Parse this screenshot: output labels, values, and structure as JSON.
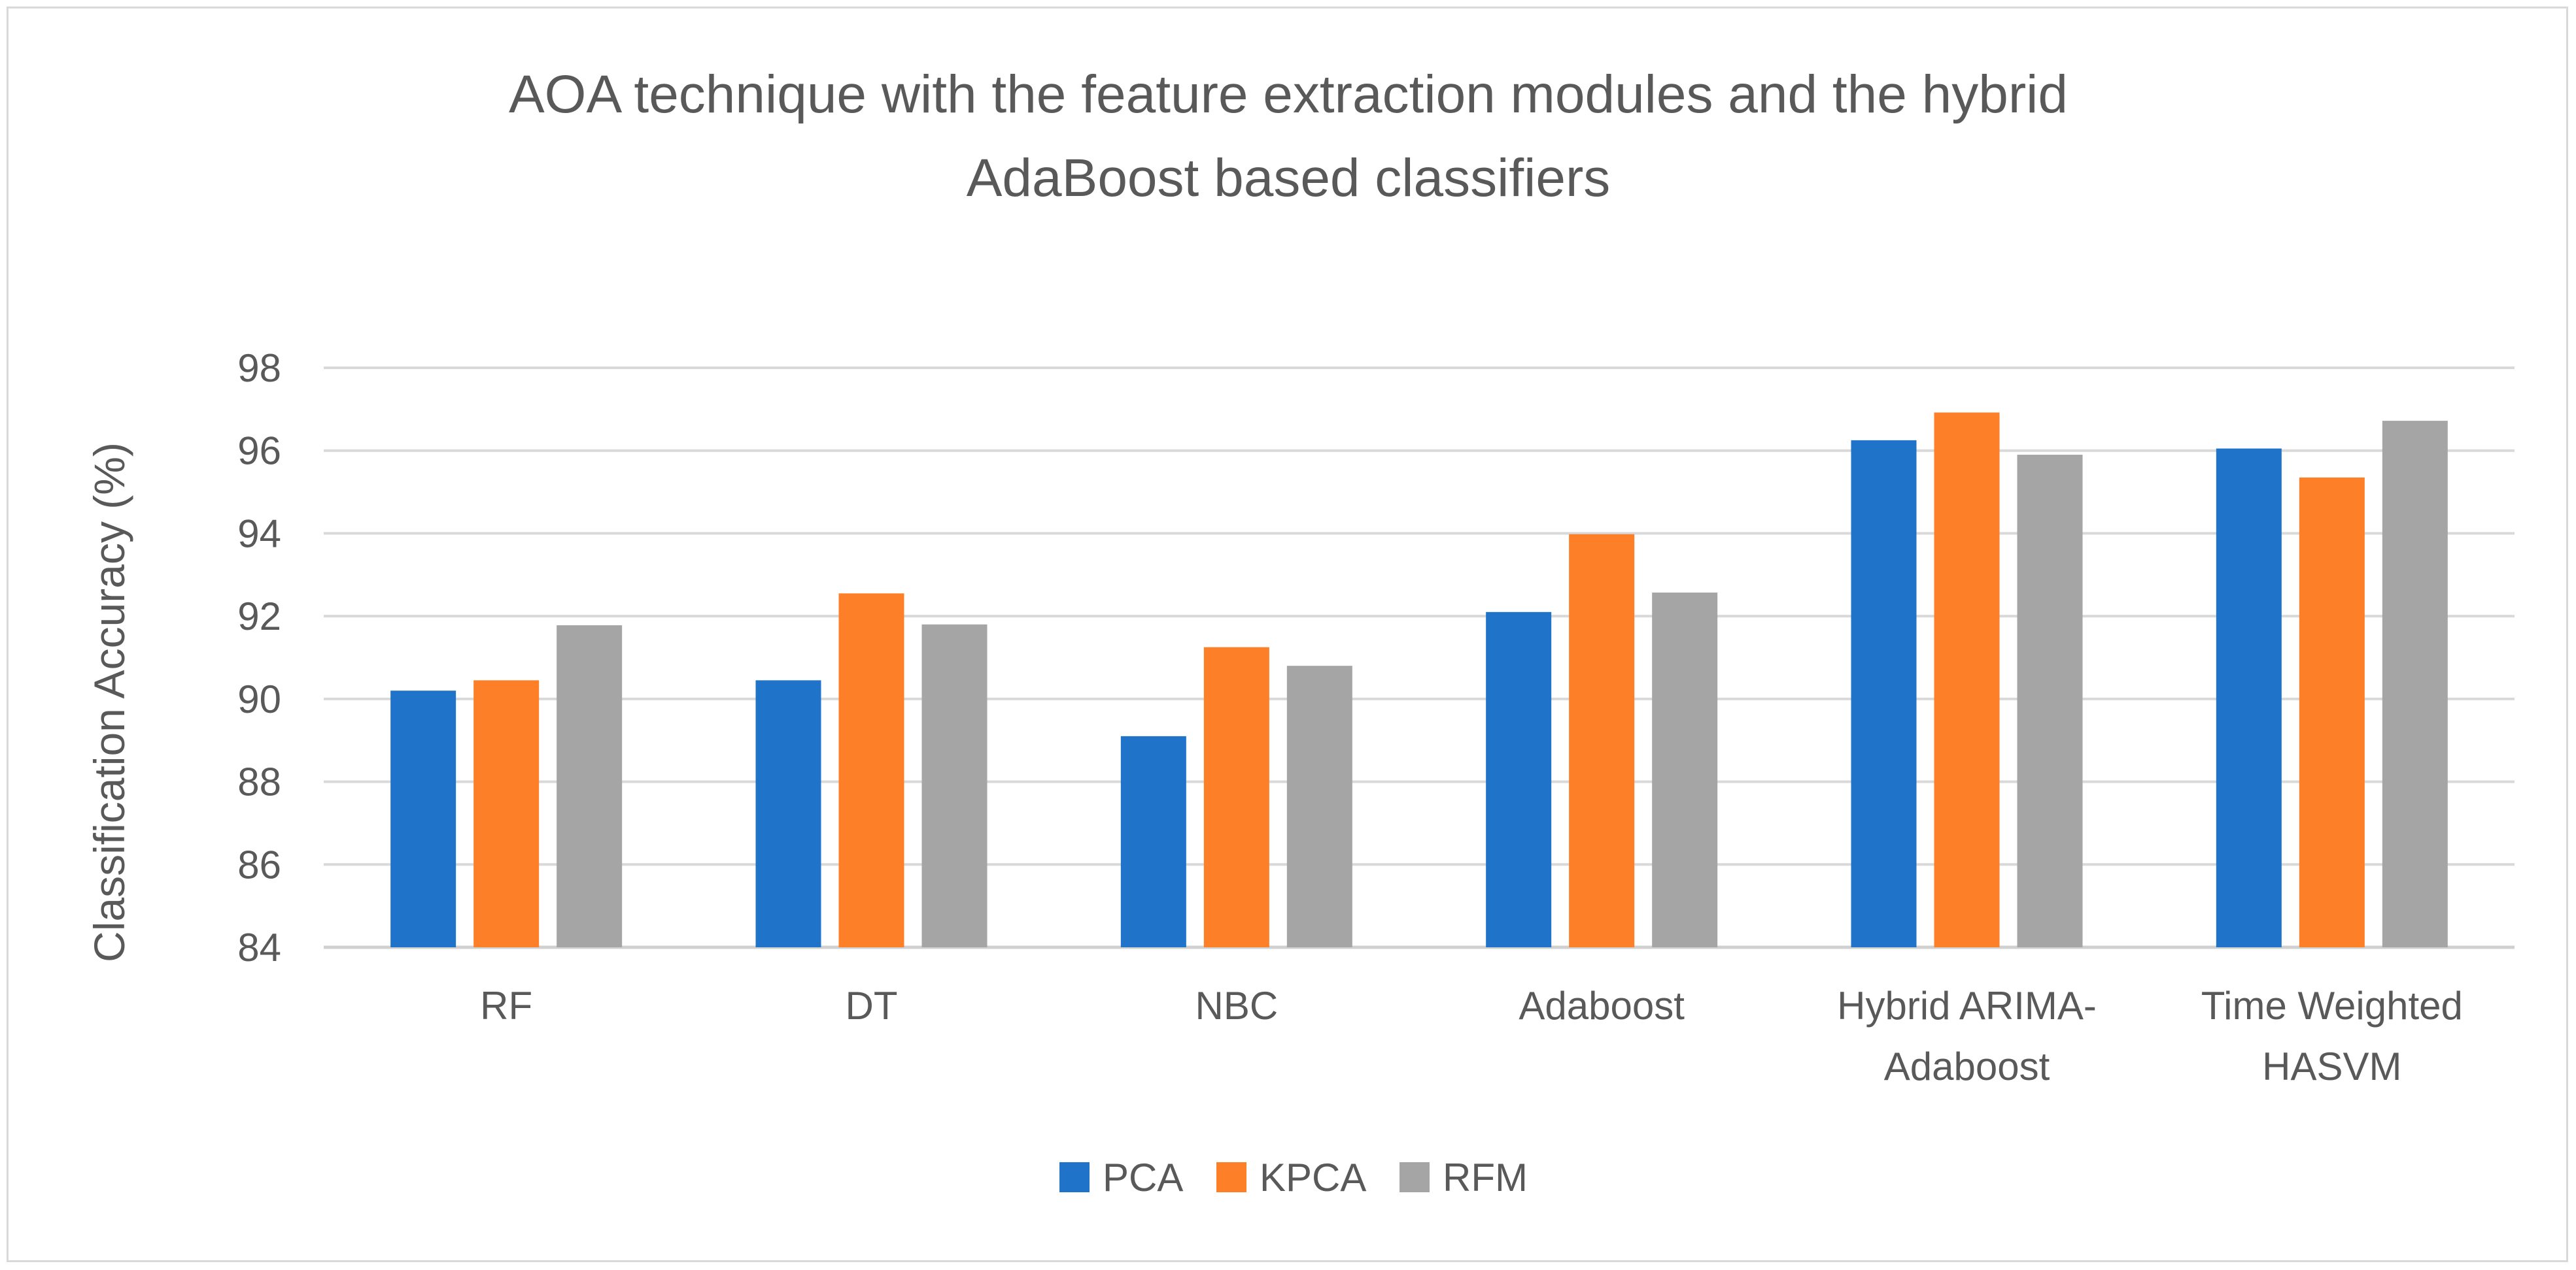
{
  "chart_data": {
    "type": "bar",
    "title": "AOA technique with the feature extraction modules and the hybrid AdaBoost based classifiers",
    "title_lines": [
      "AOA technique with the feature extraction modules and the hybrid",
      "AdaBoost based classifiers"
    ],
    "xlabel": "",
    "ylabel": "Classification Accuracy (%)",
    "ylim": [
      84,
      98
    ],
    "yticks": [
      84,
      86,
      88,
      90,
      92,
      94,
      96,
      98
    ],
    "grid": true,
    "legend_position": "bottom",
    "categories": [
      "RF",
      "DT",
      "NBC",
      "Adaboost",
      "Hybrid ARIMA-Adaboost",
      "Time Weighted HASVM"
    ],
    "category_lines": [
      [
        "RF"
      ],
      [
        "DT"
      ],
      [
        "NBC"
      ],
      [
        "Adaboost"
      ],
      [
        "Hybrid ARIMA-",
        "Adaboost"
      ],
      [
        "Time Weighted",
        "HASVM"
      ]
    ],
    "series": [
      {
        "name": "PCA",
        "color": "#1f74c9",
        "values": [
          90.2,
          90.45,
          89.1,
          92.1,
          96.25,
          96.05
        ]
      },
      {
        "name": "KPCA",
        "color": "#fd7f27",
        "values": [
          90.45,
          92.55,
          91.25,
          93.98,
          96.92,
          95.35
        ]
      },
      {
        "name": "RFM",
        "color": "#a5a5a5",
        "values": [
          91.78,
          91.8,
          90.8,
          92.57,
          95.9,
          96.72
        ]
      }
    ]
  }
}
